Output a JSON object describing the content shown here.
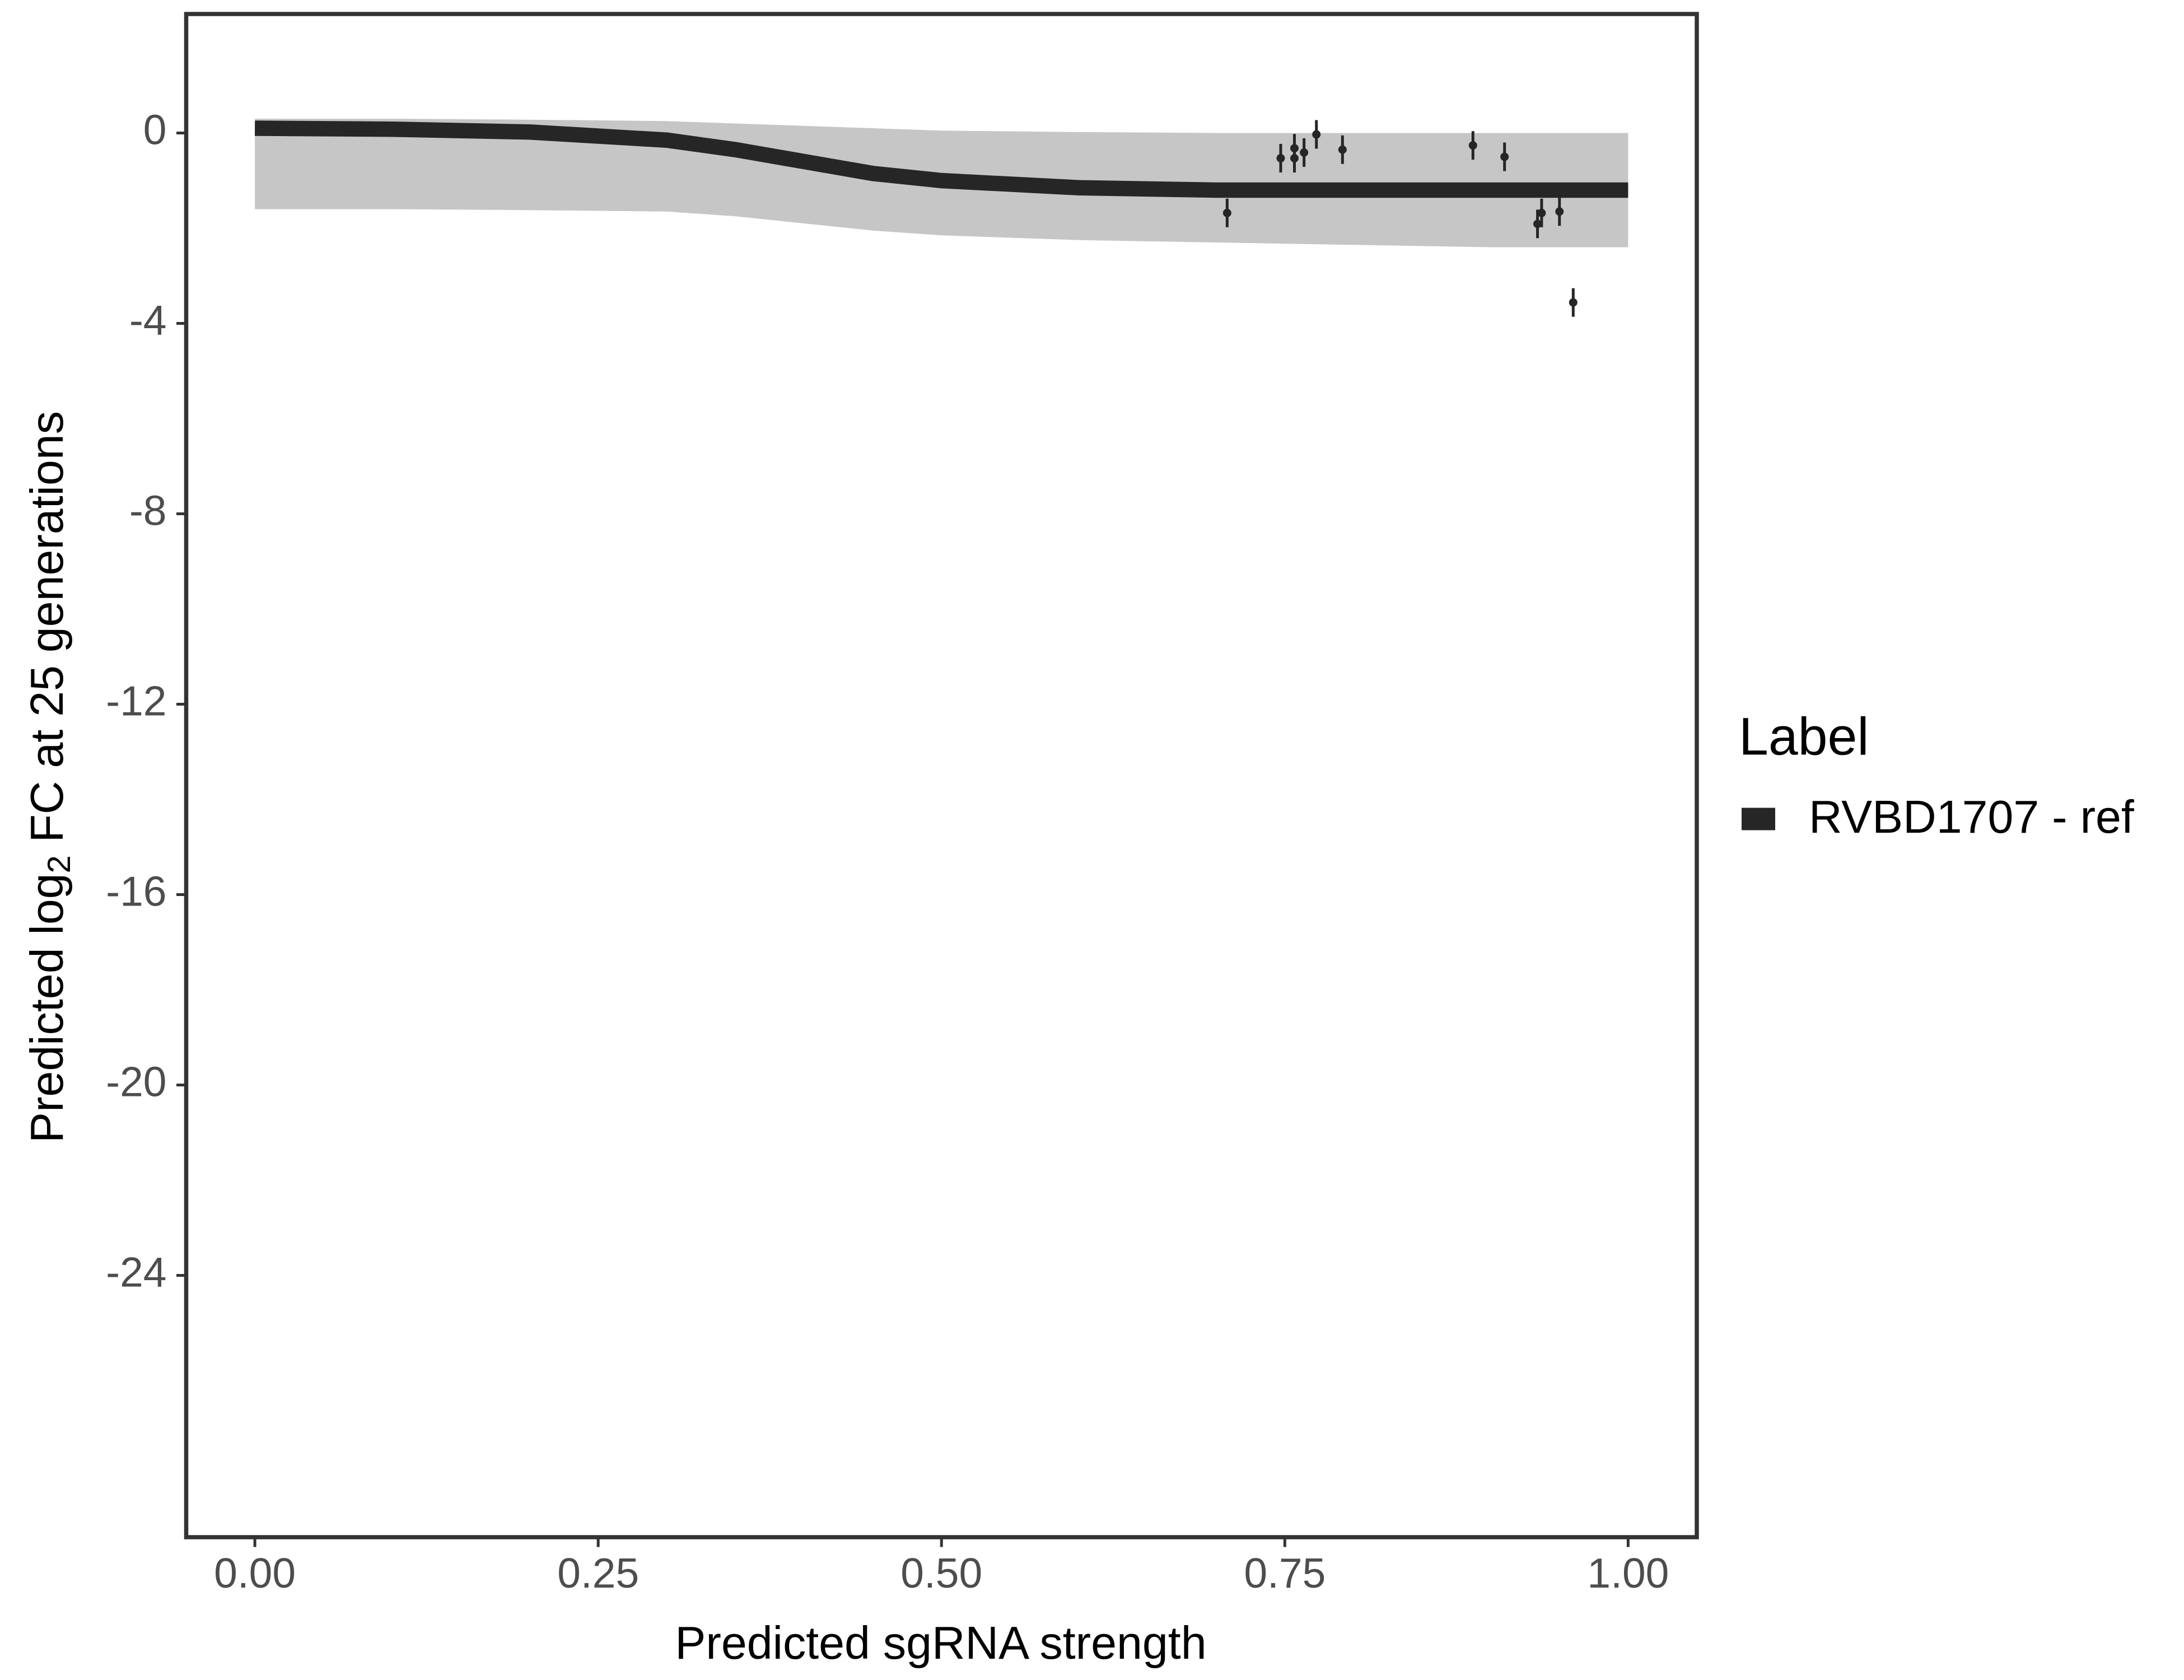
{
  "chart_data": {
    "type": "line",
    "x_label": "Predicted sgRNA strength",
    "y_label_prefix": "Predicted  log",
    "y_label_sub": "2",
    "y_label_suffix": " FC at 25 generations",
    "legend_title": "Label",
    "legend_position": "right",
    "xlim": [
      -0.05,
      1.05
    ],
    "ylim": [
      -29.5,
      2.5
    ],
    "xticks": [
      {
        "value": 0,
        "label": "0.00"
      },
      {
        "value": 0.25,
        "label": "0.25"
      },
      {
        "value": 0.5,
        "label": "0.50"
      },
      {
        "value": 0.75,
        "label": "0.75"
      },
      {
        "value": 1,
        "label": "1.00"
      }
    ],
    "yticks": [
      0,
      -4,
      -8,
      -12,
      -16,
      -20,
      -24
    ],
    "curve": {
      "name": "RVBD1707 - ref",
      "color": "#262626",
      "x": [
        0,
        0.1,
        0.2,
        0.3,
        0.35,
        0.4,
        0.45,
        0.5,
        0.6,
        0.7,
        0.8,
        0.9,
        1.0
      ],
      "values": [
        0.1,
        0.08,
        0.02,
        -0.15,
        -0.35,
        -0.6,
        -0.85,
        -1.0,
        -1.15,
        -1.2,
        -1.2,
        -1.2,
        -1.2
      ]
    },
    "band": {
      "color": "#b3b3b3",
      "x": [
        0,
        0.1,
        0.2,
        0.3,
        0.35,
        0.4,
        0.45,
        0.5,
        0.6,
        0.7,
        0.8,
        0.9,
        1.0
      ],
      "upper": [
        0.3,
        0.3,
        0.28,
        0.25,
        0.2,
        0.15,
        0.1,
        0.05,
        0.02,
        0.0,
        0.0,
        0.0,
        0.0
      ],
      "lower": [
        -1.6,
        -1.6,
        -1.62,
        -1.65,
        -1.75,
        -1.9,
        -2.05,
        -2.15,
        -2.25,
        -2.3,
        -2.35,
        -2.4,
        -2.4
      ]
    },
    "points": {
      "color": "#262626",
      "x": [
        0.708,
        0.747,
        0.757,
        0.757,
        0.764,
        0.773,
        0.792,
        0.887,
        0.91,
        0.934,
        0.937,
        0.95,
        0.96
      ],
      "values": [
        -1.68,
        -0.53,
        -0.32,
        -0.53,
        -0.41,
        -0.03,
        -0.35,
        -0.26,
        -0.5,
        -1.91,
        -1.68,
        -1.65,
        -3.56
      ],
      "errors": [
        0.3,
        0.3,
        0.3,
        0.3,
        0.3,
        0.3,
        0.3,
        0.3,
        0.3,
        0.3,
        0.3,
        0.3,
        0.3
      ]
    }
  }
}
